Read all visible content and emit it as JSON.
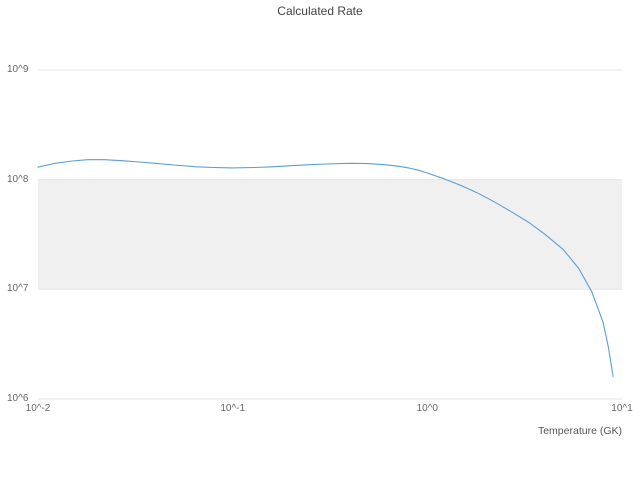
{
  "chart_data": {
    "type": "line",
    "title": "Calculated Rate",
    "xlabel": "Temperature (GK)",
    "ylabel": "",
    "x_scale": "log",
    "y_scale": "log",
    "xlim": [
      0.01,
      10
    ],
    "ylim": [
      1000000,
      1000000000
    ],
    "x_ticks": [
      0.01,
      0.1,
      1,
      10
    ],
    "x_tick_labels": [
      "10^-2",
      "10^-1",
      "10^0",
      "10^1"
    ],
    "y_ticks": [
      1000000,
      10000000,
      100000000,
      1000000000
    ],
    "y_tick_labels": [
      "10^6",
      "10^7",
      "10^8",
      "10^9"
    ],
    "grid": "horizontal-decades",
    "legend": "none",
    "line_color": "#5a9fd4",
    "grid_color": "#e4e4e4",
    "band": {
      "y_from": 10000000,
      "y_to": 100000000,
      "color": "#f0f0f0"
    },
    "series": [
      {
        "name": "calculated-rate",
        "x": [
          0.01,
          0.012,
          0.015,
          0.018,
          0.022,
          0.027,
          0.033,
          0.04,
          0.05,
          0.065,
          0.08,
          0.1,
          0.13,
          0.16,
          0.2,
          0.25,
          0.3,
          0.4,
          0.5,
          0.6,
          0.7,
          0.8,
          0.9,
          1.0,
          1.2,
          1.5,
          1.8,
          2.2,
          2.7,
          3.3,
          4.0,
          5.0,
          6.0,
          7.0,
          8.0,
          8.5,
          9.0
        ],
        "y": [
          130000000.0,
          140000000.0,
          148000000.0,
          152000000.0,
          152000000.0,
          149000000.0,
          145000000.0,
          141000000.0,
          136000000.0,
          131000000.0,
          129000000.0,
          128000000.0,
          129000000.0,
          131000000.0,
          134000000.0,
          137000000.0,
          139000000.0,
          141000000.0,
          140000000.0,
          137000000.0,
          133000000.0,
          128000000.0,
          122000000.0,
          115000000.0,
          103000000.0,
          88000000.0,
          76000000.0,
          63000000.0,
          51000000.0,
          41000000.0,
          32000000.0,
          23000000.0,
          15500000.0,
          9500000.0,
          5000000.0,
          3000000.0,
          1600000.0
        ]
      }
    ]
  }
}
